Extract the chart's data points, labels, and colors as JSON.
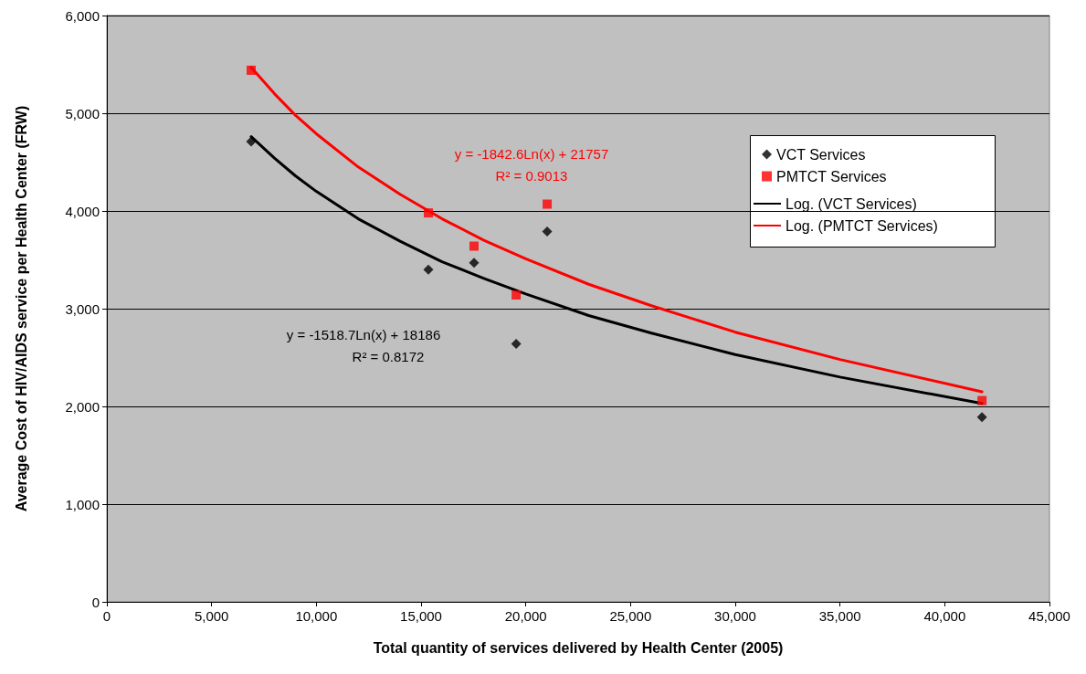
{
  "chart_data": {
    "type": "scatter",
    "xlabel": "Total quantity of services delivered by Health Center (2005)",
    "ylabel": "Average Cost of HIV/AIDS service per Health Center (FRW)",
    "xlim": [
      0,
      45000
    ],
    "xticks": [
      0,
      {
        "value": 5000,
        "label": "5,000"
      },
      {
        "value": 10000,
        "label": "10,000"
      },
      {
        "value": 15000,
        "label": "15,000"
      },
      {
        "value": 20000,
        "label": "20,000"
      },
      {
        "value": 25000,
        "label": "25,000"
      },
      {
        "value": 30000,
        "label": "30,000"
      },
      {
        "value": 35000,
        "label": "35,000"
      },
      {
        "value": 40000,
        "label": "40,000"
      },
      {
        "value": 45000,
        "label": "45,000"
      }
    ],
    "ylim": [
      0,
      6000
    ],
    "yticks": [
      0,
      {
        "value": 1000,
        "label": "1,000"
      },
      {
        "value": 2000,
        "label": "2,000"
      },
      {
        "value": 3000,
        "label": "3,000"
      },
      {
        "value": 4000,
        "label": "4,000"
      },
      {
        "value": 5000,
        "label": "5,000"
      },
      {
        "value": 6000,
        "label": "6,000"
      }
    ],
    "grid": "y",
    "legend": "right",
    "series": [
      {
        "name": "VCT Services",
        "marker": "diamond",
        "color": "#000000",
        "x": [
          6890,
          15350,
          17530,
          19540,
          21020,
          41780
        ],
        "values": [
          4710,
          3400,
          3470,
          2640,
          3790,
          1890
        ]
      },
      {
        "name": "PMTCT Services",
        "marker": "square",
        "color": "#ff0000",
        "x": [
          6890,
          15350,
          17530,
          19540,
          21020,
          41780
        ],
        "values": [
          5440,
          3980,
          3640,
          3140,
          4070,
          2060
        ]
      },
      {
        "name": "Log. (VCT Services)",
        "type": "line",
        "marker": "none",
        "color": "#000000",
        "x": [
          6890,
          8000,
          9000,
          10000,
          12000,
          14000,
          16000,
          18000,
          20000,
          23000,
          26000,
          30000,
          35000,
          41780
        ],
        "values": [
          4760,
          4540,
          4360,
          4200,
          3920,
          3690,
          3480,
          3310,
          3150,
          2930,
          2750,
          2530,
          2300,
          2030
        ]
      },
      {
        "name": "Log. (PMTCT Services)",
        "type": "line",
        "marker": "none",
        "color": "#ff0000",
        "x": [
          6890,
          8000,
          9000,
          10000,
          12000,
          14000,
          16000,
          18000,
          20000,
          23000,
          26000,
          30000,
          35000,
          41780
        ],
        "values": [
          5470,
          5200,
          4980,
          4790,
          4450,
          4170,
          3920,
          3700,
          3510,
          3250,
          3030,
          2760,
          2480,
          2150
        ]
      }
    ],
    "annotations": [
      "y = -1842.6Ln(x) + 21757",
      "R² = 0.9013",
      "y = -1518.7Ln(x) + 18186",
      "R² = 0.8172"
    ]
  }
}
